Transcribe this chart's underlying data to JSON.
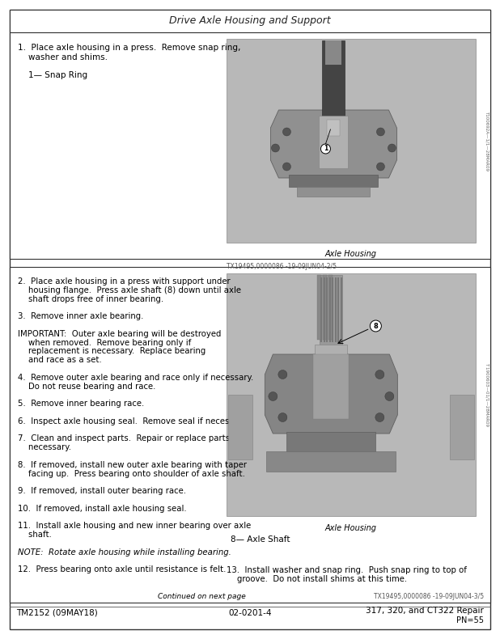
{
  "title": "Drive Axle Housing and Support",
  "footer_left": "TM2152 (09MAY18)",
  "footer_center": "02-0201-4",
  "footer_right": "317, 320, and CT322 Repair",
  "footer_right2": "PN=55",
  "sec1_lines": [
    {
      "text": "1.  Place axle housing in a press.  Remove snap ring,",
      "indent": 12,
      "bold": false,
      "italic": false
    },
    {
      "text": "    washer and shims.",
      "indent": 12,
      "bold": false,
      "italic": false
    },
    {
      "text": "",
      "indent": 12,
      "bold": false,
      "italic": false
    },
    {
      "text": "    1— Snap Ring",
      "indent": 12,
      "bold": false,
      "italic": false
    }
  ],
  "sec1_caption": "Axle Housing",
  "sec1_img_note": "TX19495,0000086 -19-09JUN04-2/5",
  "sec1_side_text": "T100692A—1/1—28MAR09",
  "sec2_lines": [
    {
      "text": "2.  Place axle housing in a press with support under",
      "indent": 12,
      "bold": false,
      "italic": false
    },
    {
      "text": "    housing flange.  Press axle shaft (8) down until axle",
      "indent": 12,
      "bold": false,
      "italic": false
    },
    {
      "text": "    shaft drops free of inner bearing.",
      "indent": 12,
      "bold": false,
      "italic": false
    },
    {
      "text": "",
      "indent": 12,
      "bold": false,
      "italic": false
    },
    {
      "text": "3.  Remove inner axle bearing.",
      "indent": 12,
      "bold": false,
      "italic": false
    },
    {
      "text": "",
      "indent": 12,
      "bold": false,
      "italic": false
    },
    {
      "text": "IMPORTANT:  Outer axle bearing will be destroyed",
      "indent": 12,
      "bold": false,
      "italic": false
    },
    {
      "text": "    when removed.  Remove bearing only if",
      "indent": 12,
      "bold": false,
      "italic": false
    },
    {
      "text": "    replacement is necessary.  Replace bearing",
      "indent": 12,
      "bold": false,
      "italic": false
    },
    {
      "text": "    and race as a set.",
      "indent": 12,
      "bold": false,
      "italic": false
    },
    {
      "text": "",
      "indent": 12,
      "bold": false,
      "italic": false
    },
    {
      "text": "4.  Remove outer axle bearing and race only if necessary.",
      "indent": 12,
      "bold": false,
      "italic": false
    },
    {
      "text": "    Do not reuse bearing and race.",
      "indent": 12,
      "bold": false,
      "italic": false
    },
    {
      "text": "",
      "indent": 12,
      "bold": false,
      "italic": false
    },
    {
      "text": "5.  Remove inner bearing race.",
      "indent": 12,
      "bold": false,
      "italic": false
    },
    {
      "text": "",
      "indent": 12,
      "bold": false,
      "italic": false
    },
    {
      "text": "6.  Inspect axle housing seal.  Remove seal if necessary.",
      "indent": 12,
      "bold": false,
      "italic": false
    },
    {
      "text": "",
      "indent": 12,
      "bold": false,
      "italic": false
    },
    {
      "text": "7.  Clean and inspect parts.  Repair or replace parts as",
      "indent": 12,
      "bold": false,
      "italic": false
    },
    {
      "text": "    necessary.",
      "indent": 12,
      "bold": false,
      "italic": false
    },
    {
      "text": "",
      "indent": 12,
      "bold": false,
      "italic": false
    },
    {
      "text": "8.  If removed, install new outer axle bearing with taper",
      "indent": 12,
      "bold": false,
      "italic": false
    },
    {
      "text": "    facing up.  Press bearing onto shoulder of axle shaft.",
      "indent": 12,
      "bold": false,
      "italic": false
    },
    {
      "text": "",
      "indent": 12,
      "bold": false,
      "italic": false
    },
    {
      "text": "9.  If removed, install outer bearing race.",
      "indent": 12,
      "bold": false,
      "italic": false
    },
    {
      "text": "",
      "indent": 12,
      "bold": false,
      "italic": false
    },
    {
      "text": "10.  If removed, install axle housing seal.",
      "indent": 12,
      "bold": false,
      "italic": false
    },
    {
      "text": "",
      "indent": 12,
      "bold": false,
      "italic": false
    },
    {
      "text": "11.  Install axle housing and new inner bearing over axle",
      "indent": 12,
      "bold": false,
      "italic": false
    },
    {
      "text": "    shaft.",
      "indent": 12,
      "bold": false,
      "italic": false
    },
    {
      "text": "",
      "indent": 12,
      "bold": false,
      "italic": false
    },
    {
      "text": "NOTE:  Rotate axle housing while installing bearing.",
      "indent": 12,
      "bold": false,
      "italic": true
    },
    {
      "text": "",
      "indent": 12,
      "bold": false,
      "italic": false
    },
    {
      "text": "12.  Press bearing onto axle until resistance is felt.",
      "indent": 12,
      "bold": false,
      "italic": false
    }
  ],
  "sec2_caption": "Axle Housing",
  "sec2_label": "8— Axle Shaft",
  "sec2_img_note": "TX19495,0000086 -19-09JUN04-3/5",
  "sec2_side_text": "T 1900603—01/1—28MAR09",
  "step13a": "13.  Install washer and snap ring.  Push snap ring to top of",
  "step13b": "    groove.  Do not install shims at this time.",
  "continued": "Continued on next page",
  "bg_color": "#ffffff",
  "border_color": "#000000",
  "text_color": "#000000",
  "gray_text": "#555555",
  "img_bg": "#b8b8b8"
}
